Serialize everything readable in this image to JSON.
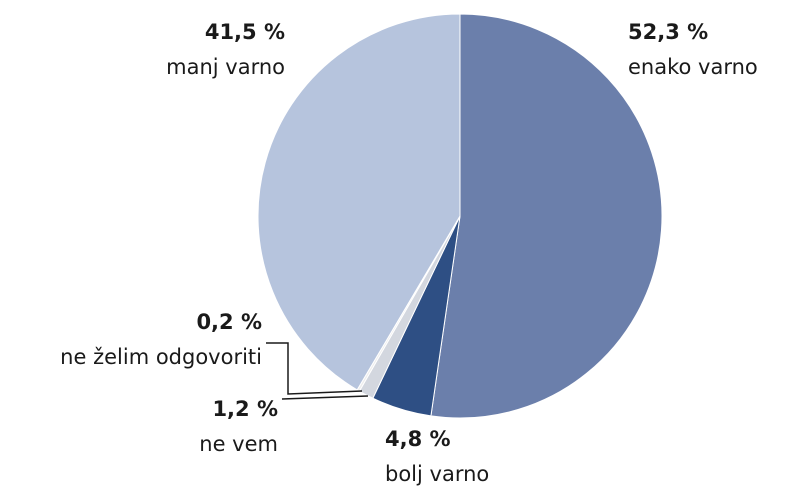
{
  "chart_data": {
    "type": "pie",
    "categories": [
      "enako varno",
      "bolj varno",
      "ne vem",
      "ne želim odgovoriti",
      "manj varno"
    ],
    "values": [
      52.3,
      4.8,
      1.2,
      0.2,
      41.5
    ],
    "value_labels": [
      "52,3 %",
      "4,8 %",
      "1,2 %",
      "0,2 %",
      "41,5 %"
    ],
    "colors": [
      "#6b7fab",
      "#2e4f84",
      "#d3d7df",
      "#eeeeee",
      "#b6c4dd"
    ]
  }
}
